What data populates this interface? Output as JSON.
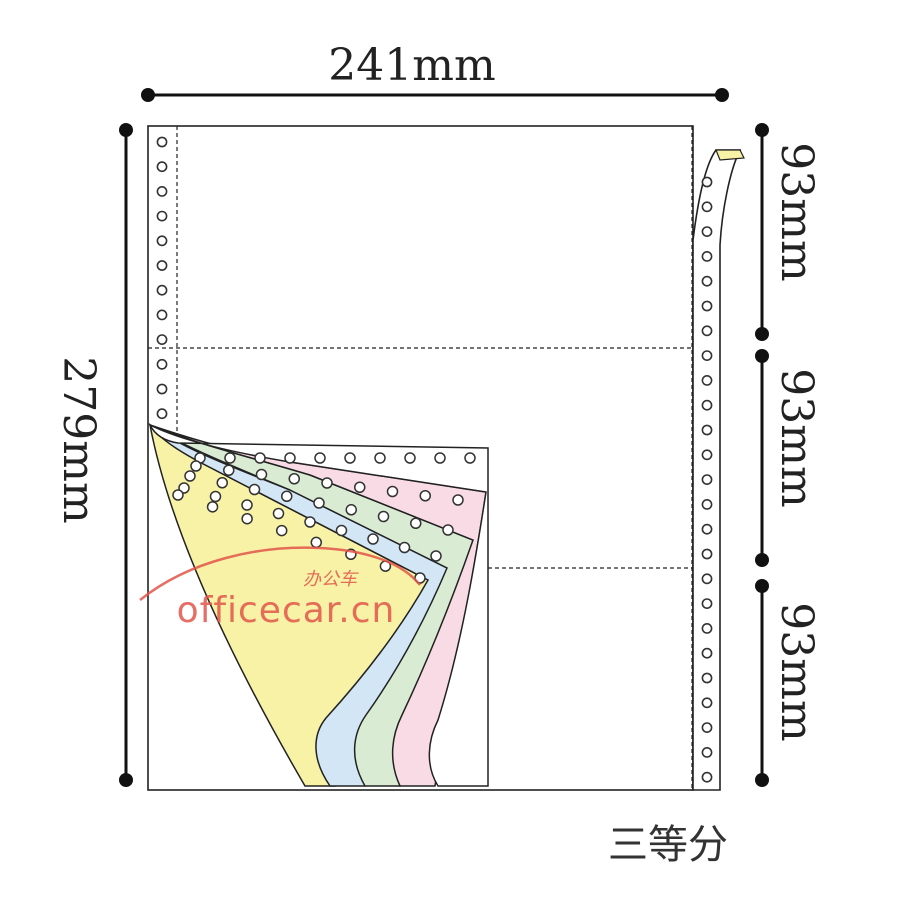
{
  "dimensions": {
    "width": "241mm",
    "height": "279mm",
    "section_1": "93mm",
    "section_2": "93mm",
    "section_3": "93mm"
  },
  "caption": "三等分",
  "watermark": {
    "text": "officecar.cn",
    "chinese": "办公车"
  },
  "colors": {
    "line": "#222222",
    "perforation": "#333333",
    "sheet_white": "#ffffff",
    "sheet_pink": "#f9dbe6",
    "sheet_green": "#d9ecd3",
    "sheet_blue": "#d3e6f5",
    "sheet_yellow": "#f7f2a6",
    "watermark": "#e2554a"
  },
  "layers": [
    {
      "name": "white",
      "color": "#ffffff"
    },
    {
      "name": "pink",
      "color": "#f9dbe6"
    },
    {
      "name": "green",
      "color": "#d9ecd3"
    },
    {
      "name": "blue",
      "color": "#d3e6f5"
    },
    {
      "name": "yellow",
      "color": "#f7f2a6"
    }
  ]
}
